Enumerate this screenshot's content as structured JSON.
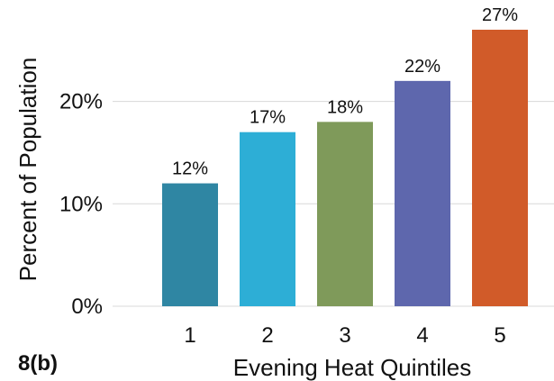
{
  "panel_label": "8(b)",
  "chart_data": {
    "type": "bar",
    "categories": [
      "1",
      "2",
      "3",
      "4",
      "5"
    ],
    "values": [
      12,
      17,
      18,
      22,
      27
    ],
    "value_labels": [
      "12%",
      "17%",
      "18%",
      "22%",
      "27%"
    ],
    "title": "",
    "xlabel": "Evening Heat Quintiles",
    "ylabel": "Percent of Population",
    "ylim": [
      0,
      27
    ],
    "yticks": [
      0,
      10,
      20
    ],
    "ytick_labels": [
      "0%",
      "10%",
      "20%"
    ],
    "colors": [
      "#2f86a3",
      "#2daed6",
      "#7f9a5a",
      "#5e67ad",
      "#d15b29"
    ],
    "grid": true
  }
}
